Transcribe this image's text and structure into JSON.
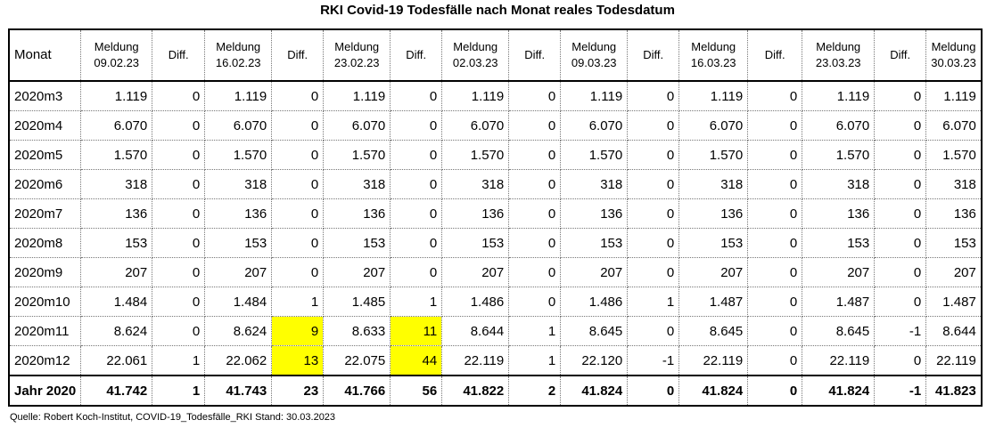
{
  "title": "RKI Covid-19 Todesfälle nach Monat reales Todesdatum",
  "header": {
    "month": "Monat",
    "columns": [
      {
        "type": "meldung",
        "line1": "Meldung",
        "line2": "09.02.23"
      },
      {
        "type": "diff",
        "line1": "Diff."
      },
      {
        "type": "meldung",
        "line1": "Meldung",
        "line2": "16.02.23"
      },
      {
        "type": "diff",
        "line1": "Diff."
      },
      {
        "type": "meldung",
        "line1": "Meldung",
        "line2": "23.02.23"
      },
      {
        "type": "diff",
        "line1": "Diff."
      },
      {
        "type": "meldung",
        "line1": "Meldung",
        "line2": "02.03.23"
      },
      {
        "type": "diff",
        "line1": "Diff."
      },
      {
        "type": "meldung",
        "line1": "Meldung",
        "line2": "09.03.23"
      },
      {
        "type": "diff",
        "line1": "Diff."
      },
      {
        "type": "meldung",
        "line1": "Meldung",
        "line2": "16.03.23"
      },
      {
        "type": "diff",
        "line1": "Diff."
      },
      {
        "type": "meldung",
        "line1": "Meldung",
        "line2": "23.03.23"
      },
      {
        "type": "diff",
        "line1": "Diff."
      },
      {
        "type": "meldung",
        "line1": "Meldung",
        "line2": "30.03.23"
      }
    ]
  },
  "highlight_color": "#ffff00",
  "rows": [
    {
      "label": "2020m3",
      "cells": [
        "1.119",
        "0",
        "1.119",
        "0",
        "1.119",
        "0",
        "1.119",
        "0",
        "1.119",
        "0",
        "1.119",
        "0",
        "1.119",
        "0",
        "1.119"
      ],
      "highlight": []
    },
    {
      "label": "2020m4",
      "cells": [
        "6.070",
        "0",
        "6.070",
        "0",
        "6.070",
        "0",
        "6.070",
        "0",
        "6.070",
        "0",
        "6.070",
        "0",
        "6.070",
        "0",
        "6.070"
      ],
      "highlight": []
    },
    {
      "label": "2020m5",
      "cells": [
        "1.570",
        "0",
        "1.570",
        "0",
        "1.570",
        "0",
        "1.570",
        "0",
        "1.570",
        "0",
        "1.570",
        "0",
        "1.570",
        "0",
        "1.570"
      ],
      "highlight": []
    },
    {
      "label": "2020m6",
      "cells": [
        "318",
        "0",
        "318",
        "0",
        "318",
        "0",
        "318",
        "0",
        "318",
        "0",
        "318",
        "0",
        "318",
        "0",
        "318"
      ],
      "highlight": []
    },
    {
      "label": "2020m7",
      "cells": [
        "136",
        "0",
        "136",
        "0",
        "136",
        "0",
        "136",
        "0",
        "136",
        "0",
        "136",
        "0",
        "136",
        "0",
        "136"
      ],
      "highlight": []
    },
    {
      "label": "2020m8",
      "cells": [
        "153",
        "0",
        "153",
        "0",
        "153",
        "0",
        "153",
        "0",
        "153",
        "0",
        "153",
        "0",
        "153",
        "0",
        "153"
      ],
      "highlight": []
    },
    {
      "label": "2020m9",
      "cells": [
        "207",
        "0",
        "207",
        "0",
        "207",
        "0",
        "207",
        "0",
        "207",
        "0",
        "207",
        "0",
        "207",
        "0",
        "207"
      ],
      "highlight": []
    },
    {
      "label": "2020m10",
      "cells": [
        "1.484",
        "0",
        "1.484",
        "1",
        "1.485",
        "1",
        "1.486",
        "0",
        "1.486",
        "1",
        "1.487",
        "0",
        "1.487",
        "0",
        "1.487"
      ],
      "highlight": []
    },
    {
      "label": "2020m11",
      "cells": [
        "8.624",
        "0",
        "8.624",
        "9",
        "8.633",
        "11",
        "8.644",
        "1",
        "8.645",
        "0",
        "8.645",
        "0",
        "8.645",
        "-1",
        "8.644"
      ],
      "highlight": [
        3,
        5
      ]
    },
    {
      "label": "2020m12",
      "cells": [
        "22.061",
        "1",
        "22.062",
        "13",
        "22.075",
        "44",
        "22.119",
        "1",
        "22.120",
        "-1",
        "22.119",
        "0",
        "22.119",
        "0",
        "22.119"
      ],
      "highlight": [
        3,
        5
      ]
    }
  ],
  "total": {
    "label": "Jahr 2020",
    "cells": [
      "41.742",
      "1",
      "41.743",
      "23",
      "41.766",
      "56",
      "41.822",
      "2",
      "41.824",
      "0",
      "41.824",
      "0",
      "41.824",
      "-1",
      "41.823"
    ]
  },
  "source": "Quelle: Robert Koch-Institut, COVID-19_Todesfälle_RKI Stand: 30.03.2023"
}
